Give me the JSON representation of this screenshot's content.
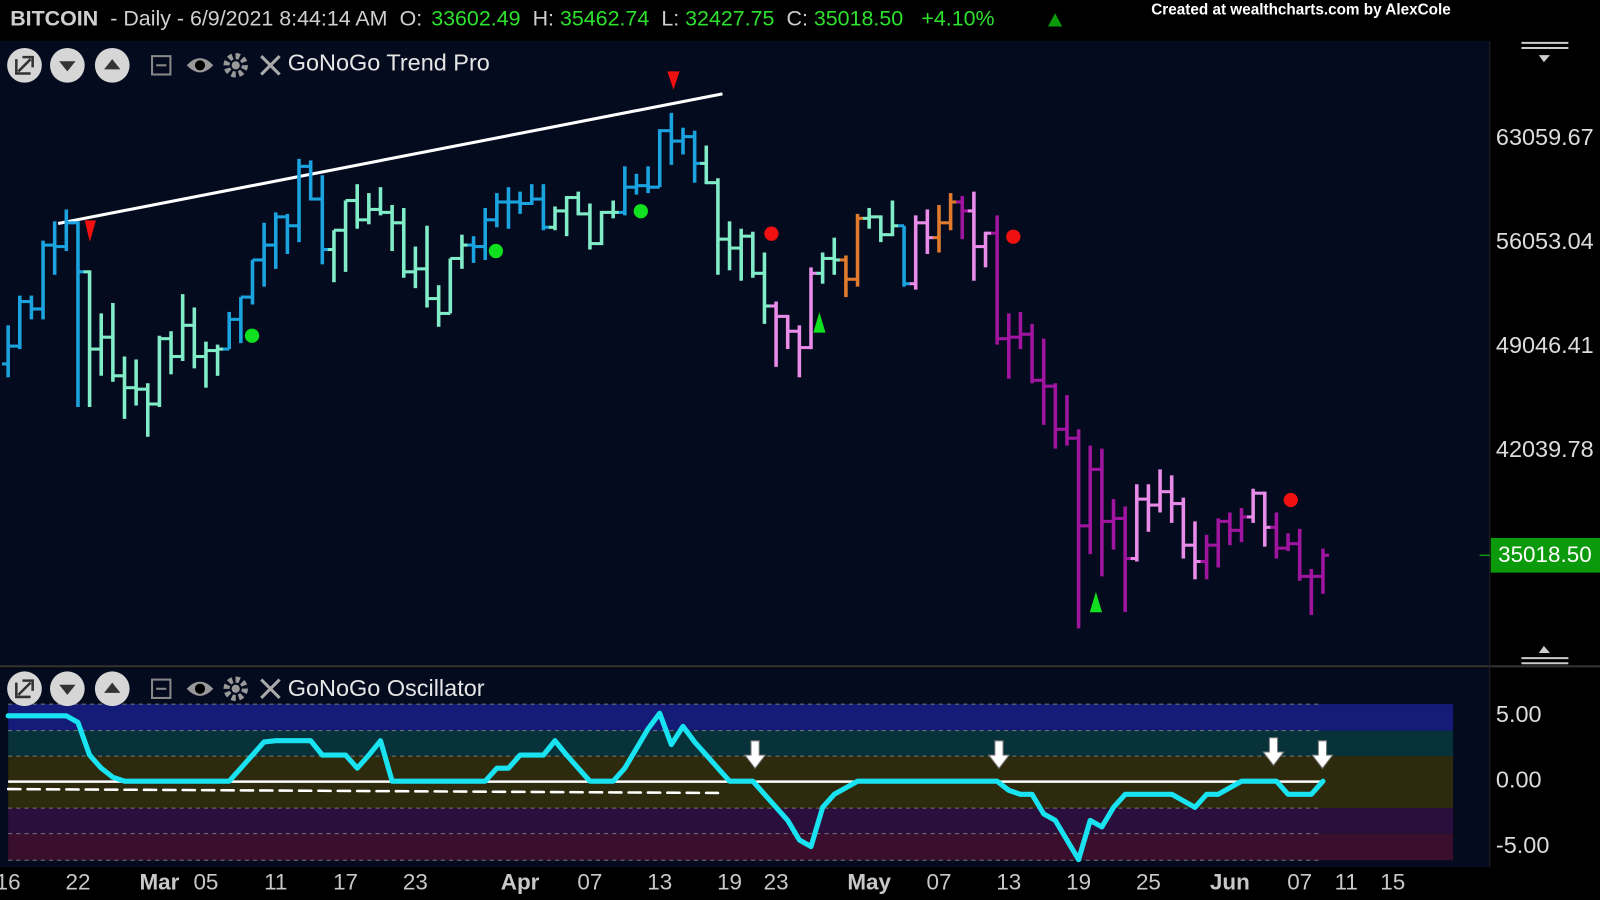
{
  "header": {
    "symbol": "BITCOIN",
    "description": "- Daily - 6/9/2021 8:44:14 AM",
    "quote": [
      {
        "label": "O:",
        "value": "33602.49"
      },
      {
        "label": "H:",
        "value": "35462.74"
      },
      {
        "label": "L:",
        "value": "32427.75"
      },
      {
        "label": "C:",
        "value": "35018.50"
      }
    ],
    "change": "+4.10%",
    "credit": "Created at wealthcharts.com by AlexCole"
  },
  "chart_data": [
    {
      "type": "ohlc",
      "title": "GoNoGo Trend Pro",
      "x": [
        0,
        1,
        2,
        3,
        4,
        5,
        6,
        7,
        8,
        9,
        10,
        11,
        12,
        13,
        14,
        15,
        16,
        17,
        18,
        19,
        20,
        21,
        22,
        23,
        24,
        25,
        26,
        27,
        28,
        29,
        30,
        31,
        32,
        33,
        34,
        35,
        36,
        37,
        38,
        39,
        40,
        41,
        42,
        43,
        44,
        45,
        46,
        47,
        48,
        49,
        50,
        51,
        52,
        53,
        54,
        55,
        56,
        57,
        58,
        59,
        60,
        61,
        62,
        63,
        64,
        65,
        66,
        67,
        68,
        69,
        70,
        71,
        72,
        73,
        74,
        75,
        76,
        77,
        78,
        79,
        80,
        81,
        82,
        83,
        84,
        85,
        86,
        87,
        88,
        89,
        90,
        91,
        92,
        93,
        94,
        95,
        96,
        97,
        98,
        99,
        100,
        101,
        102,
        103,
        104,
        105,
        106,
        107,
        108,
        109,
        110,
        111,
        112,
        113
      ],
      "open": [
        47900,
        49100,
        52100,
        51600,
        55900,
        55800,
        57400,
        54100,
        48900,
        49700,
        47100,
        46300,
        46200,
        45200,
        49600,
        48400,
        50500,
        48400,
        48800,
        48900,
        50900,
        52400,
        54900,
        55900,
        57800,
        57200,
        61200,
        59000,
        55600,
        56900,
        58900,
        57600,
        58300,
        58100,
        57400,
        54100,
        54300,
        52300,
        51300,
        55000,
        55900,
        55800,
        57600,
        58800,
        58800,
        58700,
        59000,
        57100,
        58200,
        59100,
        58000,
        56000,
        58100,
        58100,
        59800,
        59900,
        59800,
        63600,
        62900,
        63200,
        61400,
        60100,
        56300,
        55700,
        56500,
        54000,
        51800,
        51100,
        50100,
        49000,
        54000,
        55000,
        54900,
        53600,
        57700,
        57800,
        56600,
        57200,
        53300,
        57400,
        56400,
        57400,
        58800,
        58200,
        55800,
        56700,
        49600,
        49700,
        49900,
        46800,
        46400,
        43500,
        42900,
        37000,
        40800,
        37300,
        37500,
        34800,
        38800,
        38400,
        39300,
        38500,
        35700,
        34600,
        35700,
        37300,
        36700,
        37600,
        39200,
        36900,
        35500,
        35800,
        33600,
        33602.49
      ],
      "high": [
        50500,
        52500,
        52500,
        56200,
        57500,
        58300,
        57500,
        54200,
        51300,
        52000,
        48400,
        48200,
        46600,
        49800,
        50100,
        52600,
        51700,
        49400,
        49200,
        51400,
        52400,
        54900,
        57400,
        58100,
        58000,
        61700,
        61600,
        60600,
        56900,
        58900,
        60000,
        59400,
        59800,
        58600,
        58400,
        55800,
        57200,
        53200,
        55000,
        56600,
        56500,
        58400,
        59400,
        59800,
        59500,
        60000,
        60000,
        58500,
        59200,
        59500,
        58700,
        58200,
        58900,
        61200,
        60700,
        61200,
        63700,
        64800,
        63800,
        63600,
        62600,
        60400,
        57500,
        57000,
        56800,
        55400,
        52100,
        51200,
        50500,
        54400,
        55400,
        56400,
        55200,
        58000,
        58400,
        57900,
        58900,
        57200,
        57900,
        58300,
        58600,
        59400,
        59200,
        59500,
        56800,
        57900,
        51300,
        51400,
        50600,
        49600,
        46600,
        45800,
        43500,
        42400,
        42200,
        38800,
        38300,
        39800,
        39800,
        40800,
        40400,
        38900,
        37300,
        36400,
        37500,
        37900,
        38200,
        39500,
        39300,
        37900,
        36500,
        36800,
        34100,
        35462.74
      ],
      "low": [
        47000,
        48900,
        50900,
        50900,
        53900,
        55500,
        45000,
        45000,
        47100,
        46700,
        44200,
        45100,
        43000,
        45000,
        47200,
        48100,
        47600,
        46300,
        47100,
        48900,
        49300,
        51900,
        53100,
        54300,
        55300,
        56100,
        58900,
        54600,
        53400,
        54100,
        57000,
        57300,
        57900,
        55500,
        53700,
        53000,
        51700,
        50400,
        51300,
        54300,
        54700,
        54900,
        57100,
        57000,
        58000,
        58600,
        56900,
        56900,
        56500,
        57900,
        55600,
        55900,
        57700,
        57900,
        59300,
        59400,
        59800,
        61300,
        62000,
        60100,
        60000,
        53900,
        54200,
        53500,
        53700,
        50600,
        47700,
        48900,
        47000,
        48900,
        53300,
        53900,
        52400,
        53100,
        57000,
        56100,
        56500,
        53100,
        52900,
        55300,
        55400,
        56900,
        56300,
        53500,
        54400,
        49200,
        46900,
        48900,
        46600,
        43800,
        42200,
        42400,
        30100,
        35100,
        33600,
        35400,
        31200,
        34600,
        36600,
        37900,
        37200,
        34800,
        33400,
        33400,
        34200,
        35700,
        35900,
        37200,
        35600,
        34800,
        35300,
        33300,
        31000,
        32427.75
      ],
      "close": [
        49100,
        52100,
        51600,
        55900,
        55800,
        57400,
        54100,
        48900,
        49700,
        47100,
        46300,
        46200,
        45200,
        49600,
        48400,
        50500,
        48400,
        48800,
        48900,
        50900,
        52400,
        54900,
        55900,
        57800,
        57200,
        61200,
        59000,
        55600,
        56900,
        58900,
        57600,
        58300,
        58100,
        57400,
        54100,
        54300,
        52300,
        51300,
        55000,
        55900,
        55800,
        57600,
        58800,
        58800,
        58700,
        59000,
        57100,
        58200,
        59100,
        58000,
        56000,
        58100,
        58100,
        59800,
        59900,
        59800,
        63600,
        62900,
        63200,
        61400,
        60100,
        56300,
        55700,
        56500,
        54000,
        51800,
        51100,
        50100,
        49000,
        54000,
        55000,
        54900,
        53600,
        57700,
        57800,
        56600,
        57200,
        53300,
        57400,
        56400,
        57400,
        58800,
        58200,
        55800,
        56700,
        49600,
        49700,
        49900,
        46800,
        46400,
        43500,
        42900,
        37000,
        40800,
        37300,
        37500,
        34800,
        38800,
        38400,
        39300,
        38500,
        35700,
        34600,
        35700,
        37300,
        36700,
        37600,
        39200,
        36900,
        35500,
        35800,
        33600,
        33600,
        35018.5
      ],
      "colors": [
        "#1ba3e0",
        "#1ba3e0",
        "#1ba3e0",
        "#1ba3e0",
        "#1ba3e0",
        "#1ba3e0",
        "#1ba3e0",
        "#80ecc8",
        "#80ecc8",
        "#80ecc8",
        "#80ecc8",
        "#80ecc8",
        "#80ecc8",
        "#80ecc8",
        "#80ecc8",
        "#80ecc8",
        "#80ecc8",
        "#80ecc8",
        "#80ecc8",
        "#1ba3e0",
        "#1ba3e0",
        "#1ba3e0",
        "#1ba3e0",
        "#1ba3e0",
        "#1ba3e0",
        "#1ba3e0",
        "#1ba3e0",
        "#1ba3e0",
        "#80ecc8",
        "#80ecc8",
        "#80ecc8",
        "#80ecc8",
        "#80ecc8",
        "#80ecc8",
        "#80ecc8",
        "#80ecc8",
        "#80ecc8",
        "#80ecc8",
        "#80ecc8",
        "#80ecc8",
        "#1ba3e0",
        "#1ba3e0",
        "#1ba3e0",
        "#1ba3e0",
        "#1ba3e0",
        "#1ba3e0",
        "#1ba3e0",
        "#80ecc8",
        "#80ecc8",
        "#80ecc8",
        "#80ecc8",
        "#80ecc8",
        "#80ecc8",
        "#1ba3e0",
        "#1ba3e0",
        "#1ba3e0",
        "#1ba3e0",
        "#1ba3e0",
        "#1ba3e0",
        "#1ba3e0",
        "#80ecc8",
        "#80ecc8",
        "#80ecc8",
        "#80ecc8",
        "#80ecc8",
        "#80ecc8",
        "#e98be8",
        "#e98be8",
        "#e98be8",
        "#e98be8",
        "#80ecc8",
        "#80ecc8",
        "#e07b2e",
        "#e07b2e",
        "#80ecc8",
        "#80ecc8",
        "#80ecc8",
        "#1ba3e0",
        "#e98be8",
        "#e98be8",
        "#e07b2e",
        "#e07b2e",
        "#a015a0",
        "#e98be8",
        "#e98be8",
        "#a015a0",
        "#a015a0",
        "#a015a0",
        "#a015a0",
        "#a015a0",
        "#a015a0",
        "#a015a0",
        "#a015a0",
        "#a015a0",
        "#a015a0",
        "#a015a0",
        "#a015a0",
        "#e98be8",
        "#e98be8",
        "#e98be8",
        "#e98be8",
        "#e98be8",
        "#e98be8",
        "#a015a0",
        "#a015a0",
        "#a015a0",
        "#a015a0",
        "#e98be8",
        "#e98be8",
        "#a015a0",
        "#a015a0",
        "#a015a0",
        "#a015a0",
        "#a015a0"
      ],
      "xlim": [
        -0.7,
        126.9
      ],
      "ylim": [
        27750,
        69650
      ],
      "yticks": [
        63059.67,
        56053.04,
        49046.41,
        42039.78
      ],
      "price_label": {
        "value": 35018.5,
        "label": "35018.50"
      },
      "price_label_color": "#0b9a0b"
    },
    {
      "type": "line",
      "title": "GoNoGo Oscillator",
      "x": [
        0,
        1,
        2,
        3,
        4,
        5,
        6,
        7,
        8,
        9,
        10,
        11,
        12,
        13,
        14,
        15,
        16,
        17,
        18,
        19,
        20,
        21,
        22,
        23,
        24,
        25,
        26,
        27,
        28,
        29,
        30,
        31,
        32,
        33,
        34,
        35,
        36,
        37,
        38,
        39,
        40,
        41,
        42,
        43,
        44,
        45,
        46,
        47,
        48,
        49,
        50,
        51,
        52,
        53,
        54,
        55,
        56,
        57,
        58,
        59,
        60,
        61,
        62,
        63,
        64,
        65,
        66,
        67,
        68,
        69,
        70,
        71,
        72,
        73,
        74,
        75,
        76,
        77,
        78,
        79,
        80,
        81,
        82,
        83,
        84,
        85,
        86,
        87,
        88,
        89,
        90,
        91,
        92,
        93,
        94,
        95,
        96,
        97,
        98,
        99,
        100,
        101,
        102,
        103,
        104,
        105,
        106,
        107,
        108,
        109,
        110,
        111,
        112,
        113
      ],
      "series": [
        {
          "color": "#19e3f0",
          "values": [
            5,
            5,
            5,
            5,
            5,
            5,
            4.5,
            2,
            1,
            0.3,
            0,
            0,
            0,
            0,
            0,
            0,
            0,
            0,
            0,
            0,
            1,
            2,
            3,
            3.1,
            3.1,
            3.1,
            3.1,
            2,
            2,
            2,
            1,
            2,
            3.1,
            0,
            0,
            0,
            0,
            0,
            0,
            0,
            0,
            0,
            1,
            1,
            2,
            2,
            2,
            3.1,
            2,
            1,
            0,
            0,
            0,
            1,
            2.5,
            4,
            5.2,
            2.8,
            4.2,
            3,
            2,
            1,
            0,
            0,
            0,
            -1,
            -2,
            -3,
            -4.5,
            -5,
            -2,
            -1,
            -0.5,
            0,
            0,
            0,
            0,
            0,
            0,
            0,
            0,
            0,
            0,
            0,
            0,
            0,
            -0.7,
            -1,
            -1,
            -2.5,
            -3,
            -4.5,
            -6,
            -3,
            -3.5,
            -2,
            -1,
            -1,
            -1,
            -1,
            -1,
            -1.5,
            -2,
            -1,
            -1,
            -0.5,
            0,
            0,
            0,
            0,
            -1,
            -1,
            -1,
            0
          ]
        },
        {
          "color": "#ffffff",
          "dash": true,
          "x": [
            0,
            61
          ],
          "values": [
            -0.6,
            -0.9
          ]
        }
      ],
      "xlim": [
        -0.7,
        126.9
      ],
      "ylim": [
        -6.2,
        5.9
      ],
      "yticks": [
        {
          "value": 5,
          "label": "5.00"
        },
        {
          "value": 0,
          "label": "0.00"
        },
        {
          "value": -5,
          "label": "-5.00"
        }
      ],
      "xticks": [
        {
          "value": 0,
          "label": "16"
        },
        {
          "value": 6,
          "label": "22"
        },
        {
          "value": 13,
          "label": "Mar"
        },
        {
          "value": 17,
          "label": "05"
        },
        {
          "value": 23,
          "label": "11"
        },
        {
          "value": 29,
          "label": "17"
        },
        {
          "value": 35,
          "label": "23"
        },
        {
          "value": 44,
          "label": "Apr"
        },
        {
          "value": 50,
          "label": "07"
        },
        {
          "value": 56,
          "label": "13"
        },
        {
          "value": 62,
          "label": "19"
        },
        {
          "value": 66,
          "label": "23"
        },
        {
          "value": 74,
          "label": "May"
        },
        {
          "value": 80,
          "label": "07"
        },
        {
          "value": 86,
          "label": "13"
        },
        {
          "value": 92,
          "label": "19"
        },
        {
          "value": 98,
          "label": "25"
        },
        {
          "value": 105,
          "label": "Jun"
        },
        {
          "value": 111,
          "label": "07"
        },
        {
          "value": 115,
          "label": "11"
        },
        {
          "value": 119,
          "label": "15"
        }
      ]
    }
  ]
}
